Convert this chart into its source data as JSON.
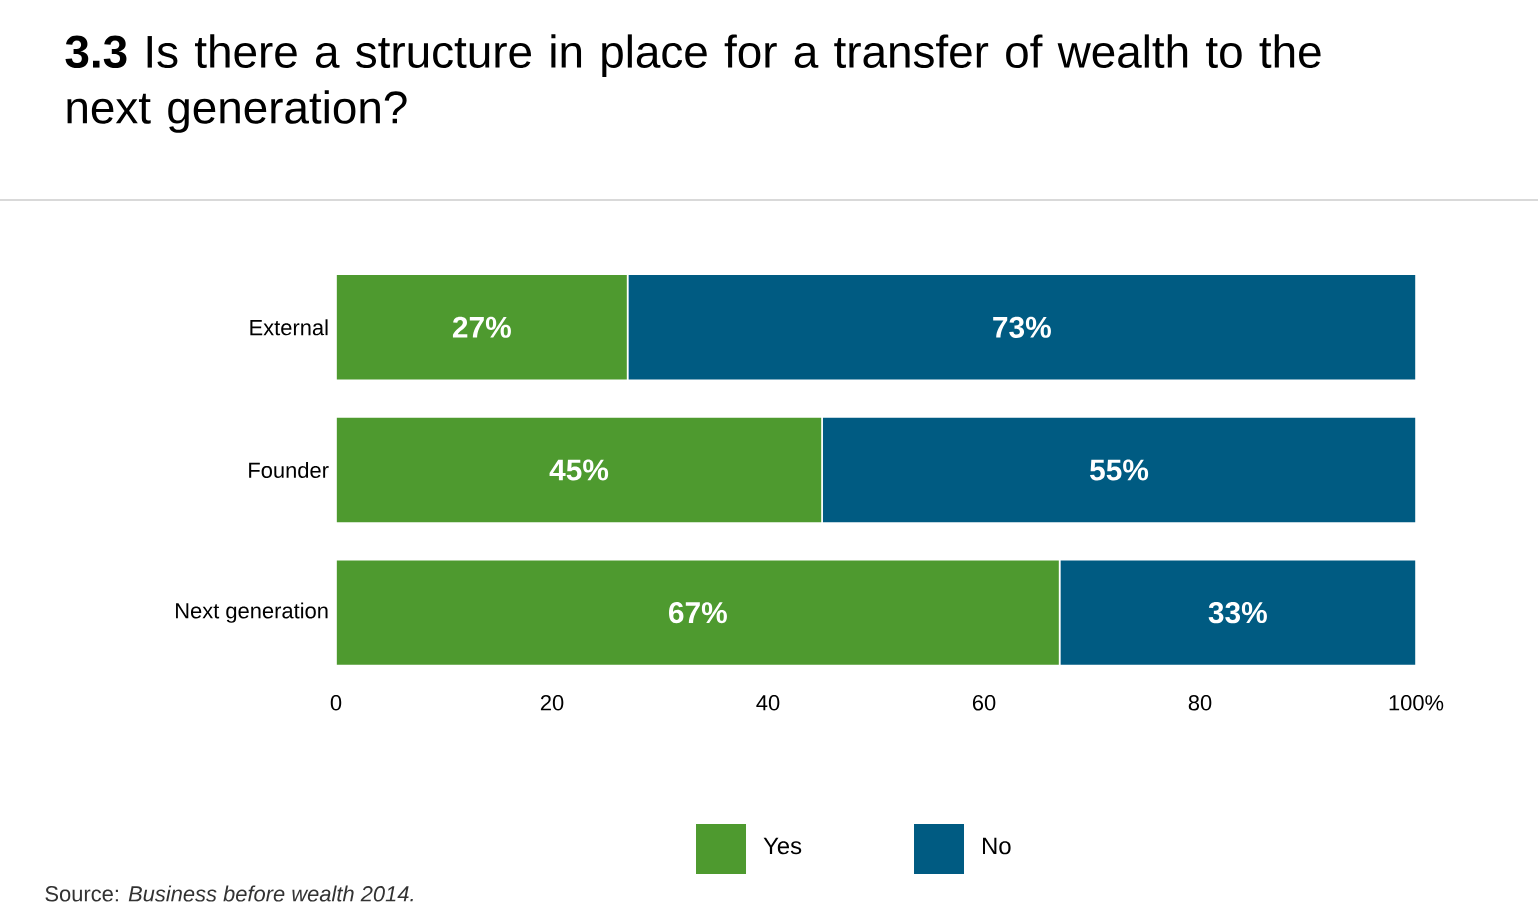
{
  "chart_data": {
    "type": "bar",
    "orientation": "horizontal",
    "stacked": true,
    "title": "**3.3** Is there a structure in place for a transfer of wealth to the next generation?",
    "categories": [
      "External",
      "Founder",
      "Next generation"
    ],
    "series": [
      {
        "name": "Yes",
        "color": "#4e9a2f",
        "values": [
          27,
          45,
          67
        ],
        "value_labels": [
          "27%",
          "45%",
          "67%"
        ]
      },
      {
        "name": "No",
        "color": "#005b82",
        "values": [
          73,
          55,
          33
        ],
        "value_labels": [
          "73%",
          "55%",
          "33%"
        ]
      }
    ],
    "xlim": [
      0,
      100
    ],
    "xticks": [
      0,
      20,
      40,
      60,
      80,
      {
        "value": 100,
        "label": "100%"
      }
    ],
    "grid": false,
    "legend": "bottom",
    "annotations": [
      "Source: *Business before wealth 2014.*"
    ]
  }
}
